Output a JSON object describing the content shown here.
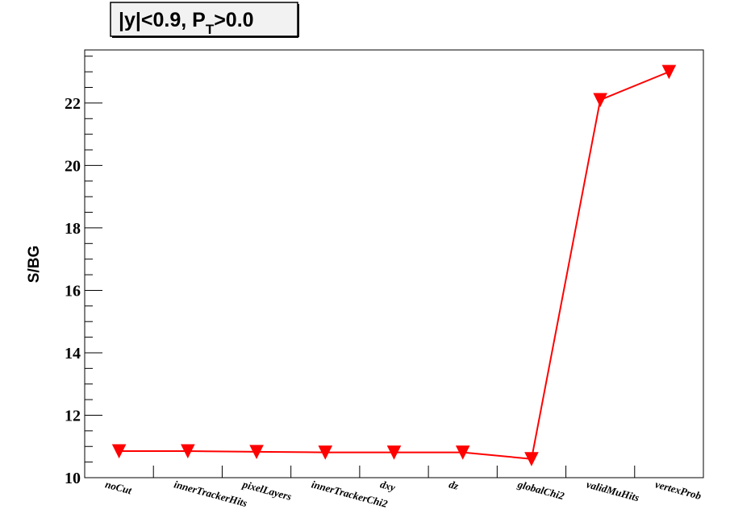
{
  "chart_data": {
    "type": "line",
    "title": {
      "main": "|y|<0.9, P",
      "subscript": "T",
      "suffix": ">0.0"
    },
    "xlabel": "",
    "ylabel": "S/BG",
    "categories": [
      "noCut",
      "innerTrackerHits",
      "pixelLayers",
      "innerTrackerChi2",
      "dxy",
      "dz",
      "globalChi2",
      "validMuHits",
      "vertexProb"
    ],
    "series": [
      {
        "values": [
          10.85,
          10.85,
          10.83,
          10.81,
          10.81,
          10.81,
          10.6,
          22.1,
          23.0
        ],
        "color": "#ff0000",
        "marker": "triangle-down"
      }
    ],
    "ylim": [
      10,
      23.7
    ],
    "yticks": [
      10,
      12,
      14,
      16,
      18,
      20,
      22
    ],
    "ytick_labels": [
      "10",
      "12",
      "14",
      "16",
      "18",
      "20",
      "22"
    ],
    "grid": false,
    "legend": "none"
  }
}
